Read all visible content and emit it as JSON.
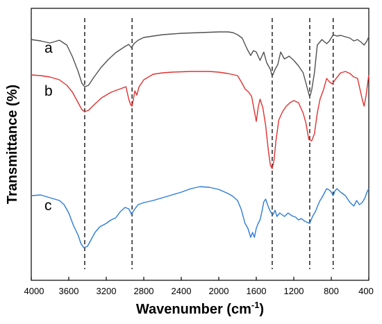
{
  "chart_data": {
    "type": "line",
    "xlabel": "Wavenumber (cm",
    "xlabel_sup": "-1",
    "xlabel_close": ")",
    "ylabel": "Transmittance (%)",
    "xlim": [
      4000,
      400
    ],
    "x_reversed": true,
    "xticks": [
      4000,
      3600,
      3200,
      2800,
      2400,
      2000,
      1600,
      1200,
      800,
      400
    ],
    "y_ticks_shown": false,
    "grid": false,
    "reference_lines_x": [
      3430,
      2925,
      1430,
      1030,
      780
    ],
    "series": [
      {
        "name": "a",
        "color": "#505050",
        "points": [
          [
            4000,
            12
          ],
          [
            3900,
            14
          ],
          [
            3800,
            17
          ],
          [
            3700,
            13
          ],
          [
            3620,
            20
          ],
          [
            3560,
            37
          ],
          [
            3500,
            58
          ],
          [
            3460,
            75
          ],
          [
            3430,
            80
          ],
          [
            3390,
            78
          ],
          [
            3330,
            66
          ],
          [
            3260,
            53
          ],
          [
            3180,
            41
          ],
          [
            3100,
            31
          ],
          [
            3000,
            22
          ],
          [
            2960,
            19
          ],
          [
            2930,
            24
          ],
          [
            2905,
            18
          ],
          [
            2860,
            13
          ],
          [
            2800,
            9
          ],
          [
            2700,
            7
          ],
          [
            2600,
            5
          ],
          [
            2500,
            4
          ],
          [
            2400,
            3
          ],
          [
            2300,
            2.5
          ],
          [
            2200,
            2
          ],
          [
            2100,
            1.5
          ],
          [
            2000,
            1
          ],
          [
            1900,
            1
          ],
          [
            1850,
            2
          ],
          [
            1800,
            5
          ],
          [
            1750,
            10
          ],
          [
            1700,
            25
          ],
          [
            1660,
            35
          ],
          [
            1630,
            28
          ],
          [
            1600,
            30
          ],
          [
            1560,
            42
          ],
          [
            1520,
            30
          ],
          [
            1490,
            45
          ],
          [
            1450,
            55
          ],
          [
            1430,
            65
          ],
          [
            1400,
            55
          ],
          [
            1370,
            48
          ],
          [
            1340,
            30
          ],
          [
            1300,
            40
          ],
          [
            1250,
            36
          ],
          [
            1200,
            42
          ],
          [
            1150,
            50
          ],
          [
            1100,
            60
          ],
          [
            1060,
            80
          ],
          [
            1030,
            95
          ],
          [
            1010,
            85
          ],
          [
            980,
            60
          ],
          [
            950,
            20
          ],
          [
            900,
            12
          ],
          [
            850,
            18
          ],
          [
            820,
            14
          ],
          [
            780,
            5
          ],
          [
            740,
            7
          ],
          [
            700,
            6
          ],
          [
            650,
            8
          ],
          [
            600,
            10
          ],
          [
            560,
            14
          ],
          [
            520,
            12
          ],
          [
            480,
            16
          ],
          [
            450,
            20
          ],
          [
            420,
            14
          ],
          [
            400,
            8
          ]
        ]
      },
      {
        "name": "b",
        "color": "#e03030",
        "points": [
          [
            4000,
            5
          ],
          [
            3900,
            6
          ],
          [
            3800,
            8
          ],
          [
            3700,
            12
          ],
          [
            3620,
            20
          ],
          [
            3560,
            30
          ],
          [
            3500,
            45
          ],
          [
            3460,
            55
          ],
          [
            3430,
            58
          ],
          [
            3390,
            56
          ],
          [
            3330,
            48
          ],
          [
            3250,
            38
          ],
          [
            3150,
            30
          ],
          [
            3050,
            25
          ],
          [
            2990,
            22
          ],
          [
            2960,
            40
          ],
          [
            2940,
            48
          ],
          [
            2925,
            50
          ],
          [
            2910,
            40
          ],
          [
            2895,
            28
          ],
          [
            2875,
            34
          ],
          [
            2850,
            22
          ],
          [
            2800,
            12
          ],
          [
            2700,
            4
          ],
          [
            2600,
            2
          ],
          [
            2500,
            1
          ],
          [
            2400,
            0.5
          ],
          [
            2300,
            0
          ],
          [
            2200,
            0
          ],
          [
            2100,
            0
          ],
          [
            2000,
            1
          ],
          [
            1900,
            3
          ],
          [
            1800,
            6
          ],
          [
            1760,
            15
          ],
          [
            1720,
            25
          ],
          [
            1680,
            30
          ],
          [
            1650,
            36
          ],
          [
            1630,
            50
          ],
          [
            1600,
            72
          ],
          [
            1580,
            52
          ],
          [
            1560,
            40
          ],
          [
            1530,
            52
          ],
          [
            1500,
            78
          ],
          [
            1470,
            115
          ],
          [
            1450,
            135
          ],
          [
            1430,
            140
          ],
          [
            1410,
            128
          ],
          [
            1390,
            100
          ],
          [
            1360,
            70
          ],
          [
            1320,
            58
          ],
          [
            1280,
            50
          ],
          [
            1240,
            45
          ],
          [
            1200,
            42
          ],
          [
            1150,
            45
          ],
          [
            1100,
            60
          ],
          [
            1070,
            75
          ],
          [
            1040,
            98
          ],
          [
            1010,
            100
          ],
          [
            980,
            90
          ],
          [
            950,
            60
          ],
          [
            920,
            40
          ],
          [
            880,
            25
          ],
          [
            850,
            10
          ],
          [
            820,
            15
          ],
          [
            790,
            18
          ],
          [
            760,
            12
          ],
          [
            700,
            2
          ],
          [
            650,
            0
          ],
          [
            600,
            3
          ],
          [
            560,
            8
          ],
          [
            520,
            10
          ],
          [
            500,
            22
          ],
          [
            470,
            40
          ],
          [
            450,
            50
          ],
          [
            430,
            35
          ],
          [
            400,
            5
          ]
        ]
      },
      {
        "name": "c",
        "color": "#2b7bd8",
        "points": [
          [
            4000,
            5
          ],
          [
            3900,
            4
          ],
          [
            3800,
            8
          ],
          [
            3700,
            12
          ],
          [
            3650,
            18
          ],
          [
            3600,
            30
          ],
          [
            3550,
            48
          ],
          [
            3500,
            62
          ],
          [
            3470,
            74
          ],
          [
            3440,
            80
          ],
          [
            3400,
            78
          ],
          [
            3360,
            68
          ],
          [
            3320,
            58
          ],
          [
            3270,
            50
          ],
          [
            3200,
            45
          ],
          [
            3150,
            40
          ],
          [
            3100,
            37
          ],
          [
            3050,
            28
          ],
          [
            3000,
            22
          ],
          [
            2960,
            24
          ],
          [
            2930,
            32
          ],
          [
            2900,
            25
          ],
          [
            2860,
            18
          ],
          [
            2800,
            15
          ],
          [
            2700,
            12
          ],
          [
            2600,
            8
          ],
          [
            2500,
            4
          ],
          [
            2400,
            0
          ],
          [
            2300,
            -5
          ],
          [
            2200,
            -8
          ],
          [
            2100,
            -7
          ],
          [
            2000,
            -4
          ],
          [
            1900,
            2
          ],
          [
            1850,
            6
          ],
          [
            1800,
            12
          ],
          [
            1760,
            25
          ],
          [
            1720,
            45
          ],
          [
            1690,
            52
          ],
          [
            1660,
            65
          ],
          [
            1640,
            58
          ],
          [
            1620,
            65
          ],
          [
            1600,
            52
          ],
          [
            1580,
            45
          ],
          [
            1560,
            40
          ],
          [
            1540,
            28
          ],
          [
            1520,
            14
          ],
          [
            1500,
            10
          ],
          [
            1480,
            18
          ],
          [
            1460,
            25
          ],
          [
            1440,
            30
          ],
          [
            1420,
            32
          ],
          [
            1400,
            26
          ],
          [
            1380,
            35
          ],
          [
            1350,
            30
          ],
          [
            1300,
            35
          ],
          [
            1260,
            30
          ],
          [
            1220,
            34
          ],
          [
            1180,
            36
          ],
          [
            1150,
            40
          ],
          [
            1120,
            38
          ],
          [
            1080,
            42
          ],
          [
            1050,
            44
          ],
          [
            1030,
            45
          ],
          [
            1000,
            35
          ],
          [
            970,
            28
          ],
          [
            940,
            18
          ],
          [
            920,
            12
          ],
          [
            900,
            8
          ],
          [
            870,
            0
          ],
          [
            850,
            -5
          ],
          [
            820,
            -3
          ],
          [
            800,
            0
          ],
          [
            780,
            5
          ],
          [
            760,
            -2
          ],
          [
            740,
            -5
          ],
          [
            700,
            0
          ],
          [
            650,
            5
          ],
          [
            600,
            15
          ],
          [
            560,
            20
          ],
          [
            530,
            12
          ],
          [
            500,
            18
          ],
          [
            470,
            15
          ],
          [
            440,
            8
          ],
          [
            420,
            0
          ],
          [
            400,
            -5
          ]
        ]
      }
    ]
  }
}
